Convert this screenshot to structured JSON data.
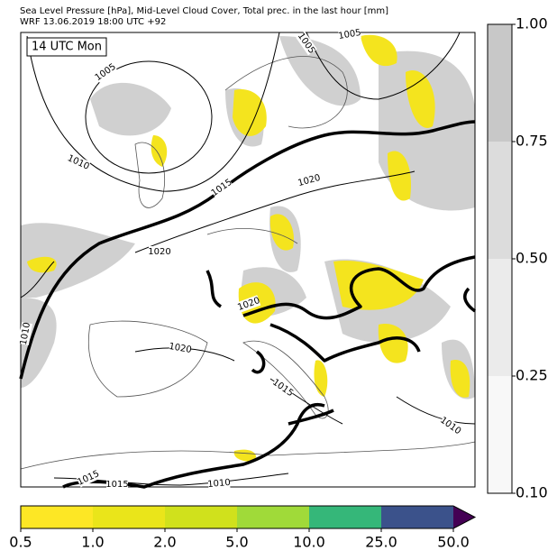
{
  "header": {
    "line1": "Sea Level Pressure [hPa], Mid-Level Cloud Cover, Total prec. in the last hour [mm]",
    "line2": "WRF 13.06.2019 18:00 UTC +92"
  },
  "map": {
    "time_label": "14 UTC Mon",
    "isobar_labels": [
      "1005",
      "1005",
      "1005",
      "1010",
      "1015",
      "1020",
      "1020",
      "1020",
      "1020",
      "1010",
      "1015",
      "1010",
      "1015",
      "1015",
      "1010"
    ]
  },
  "cloud_colorbar": {
    "ticks": [
      "0.10",
      "0.25",
      "0.50",
      "0.75",
      "1.00"
    ],
    "colors": [
      "#f8f8f8",
      "#ebebeb",
      "#dcdcdc",
      "#c8c8c8"
    ]
  },
  "precip_colorbar": {
    "ticks": [
      "0.5",
      "1.0",
      "2.0",
      "5.0",
      "10.0",
      "25.0",
      "50.0"
    ],
    "colors": [
      "#fde725",
      "#eae51a",
      "#d0e11c",
      "#a0da39",
      "#35b779",
      "#3b528b"
    ],
    "extend_color": "#440154"
  }
}
